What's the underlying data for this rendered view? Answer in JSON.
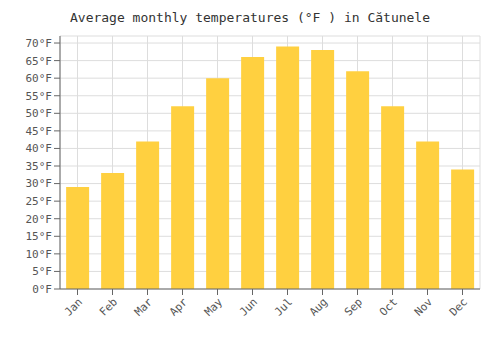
{
  "chart_data": {
    "type": "bar",
    "title": "Average monthly temperatures (°F ) in Cătunele",
    "categories": [
      "Jan",
      "Feb",
      "Mar",
      "Apr",
      "May",
      "Jun",
      "Jul",
      "Aug",
      "Sep",
      "Oct",
      "Nov",
      "Dec"
    ],
    "values": [
      29,
      33,
      42,
      52,
      60,
      66,
      69,
      68,
      62,
      52,
      42,
      34
    ],
    "color": "#FFD040",
    "ylim": [
      0,
      72
    ],
    "yticks": [
      {
        "value": 0,
        "label": "0°F"
      },
      {
        "value": 5,
        "label": "5°F"
      },
      {
        "value": 10,
        "label": "10°F"
      },
      {
        "value": 15,
        "label": "15°F"
      },
      {
        "value": 20,
        "label": "20°F"
      },
      {
        "value": 25,
        "label": "25°F"
      },
      {
        "value": 30,
        "label": "30°F"
      },
      {
        "value": 35,
        "label": "35°F"
      },
      {
        "value": 40,
        "label": "40°F"
      },
      {
        "value": 45,
        "label": "45°F"
      },
      {
        "value": 50,
        "label": "50°F"
      },
      {
        "value": 55,
        "label": "55°F"
      },
      {
        "value": 60,
        "label": "60°F"
      },
      {
        "value": 65,
        "label": "65°F"
      },
      {
        "value": 70,
        "label": "70°F"
      }
    ],
    "grid": true
  }
}
